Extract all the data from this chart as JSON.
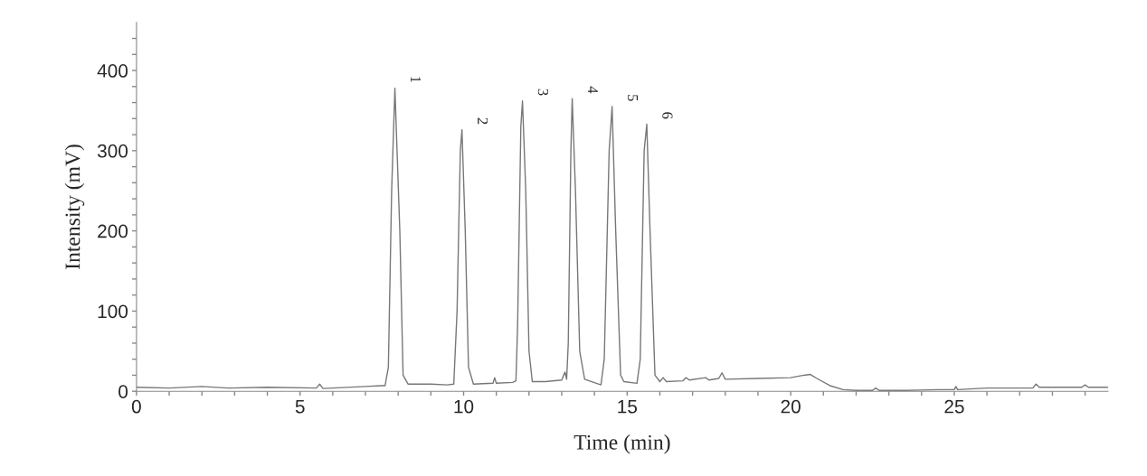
{
  "chart_data": {
    "type": "line",
    "xlabel": "Time (min)",
    "ylabel": "Intensity (mV)",
    "xlim": [
      0,
      29.7
    ],
    "ylim": [
      0,
      460
    ],
    "xticks": [
      0,
      {
        "value": 1,
        "label": null
      },
      {
        "value": 2,
        "label": null
      },
      {
        "value": 3,
        "label": null
      },
      {
        "value": 4,
        "label": null
      },
      5,
      {
        "value": 6,
        "label": null
      },
      {
        "value": 7,
        "label": null
      },
      {
        "value": 8,
        "label": null
      },
      {
        "value": 9,
        "label": null
      },
      10,
      {
        "value": 11,
        "label": null
      },
      {
        "value": 12,
        "label": null
      },
      {
        "value": 13,
        "label": null
      },
      {
        "value": 14,
        "label": null
      },
      15,
      {
        "value": 16,
        "label": null
      },
      {
        "value": 17,
        "label": null
      },
      {
        "value": 18,
        "label": null
      },
      {
        "value": 19,
        "label": null
      },
      20,
      {
        "value": 21,
        "label": null
      },
      {
        "value": 22,
        "label": null
      },
      {
        "value": 23,
        "label": null
      },
      {
        "value": 24,
        "label": null
      },
      25,
      {
        "value": 26,
        "label": null
      },
      {
        "value": 27,
        "label": null
      },
      {
        "value": 28,
        "label": null
      },
      {
        "value": 29,
        "label": null
      }
    ],
    "yticks": [
      0,
      {
        "value": 20,
        "label": null
      },
      {
        "value": 40,
        "label": null
      },
      {
        "value": 60,
        "label": null
      },
      {
        "value": 80,
        "label": null
      },
      100,
      {
        "value": 120,
        "label": null
      },
      {
        "value": 140,
        "label": null
      },
      {
        "value": 160,
        "label": null
      },
      {
        "value": 180,
        "label": null
      },
      200,
      {
        "value": 220,
        "label": null
      },
      {
        "value": 240,
        "label": null
      },
      {
        "value": 260,
        "label": null
      },
      {
        "value": 280,
        "label": null
      },
      300,
      {
        "value": 320,
        "label": null
      },
      {
        "value": 340,
        "label": null
      },
      {
        "value": 360,
        "label": null
      },
      {
        "value": 380,
        "label": null
      },
      400,
      {
        "value": 420,
        "label": null
      },
      {
        "value": 440,
        "label": null
      }
    ],
    "grid": false,
    "legend": false,
    "marker": "none",
    "line_style": "solid",
    "series": [
      {
        "color": "#777777",
        "x": [
          0,
          1,
          2,
          2.8,
          4,
          5.5,
          5.6,
          5.7,
          7,
          7.5,
          7.6,
          7.7,
          7.8,
          7.9,
          8.05,
          8.15,
          8.3,
          9,
          9.5,
          9.7,
          9.8,
          9.9,
          9.95,
          10.05,
          10.15,
          10.3,
          10.9,
          10.95,
          11.0,
          11.5,
          11.6,
          11.65,
          11.75,
          11.8,
          11.9,
          12.0,
          12.1,
          12.5,
          13.0,
          13.1,
          13.15,
          13.2,
          13.28,
          13.32,
          13.42,
          13.55,
          13.7,
          14.2,
          14.3,
          14.45,
          14.54,
          14.65,
          14.8,
          14.9,
          15.3,
          15.4,
          15.52,
          15.6,
          15.7,
          15.85,
          16,
          16.1,
          16.2,
          16.7,
          16.8,
          16.9,
          17.4,
          17.5,
          17.8,
          17.9,
          18.0,
          19,
          20,
          20.4,
          20.6,
          20.8,
          21.2,
          21.6,
          22,
          22.5,
          22.6,
          22.7,
          23.5,
          24.5,
          25,
          25.05,
          25.1,
          26,
          27,
          27.4,
          27.5,
          27.6,
          28,
          28.9,
          29,
          29.1,
          29.7
        ],
        "values": [
          5,
          4,
          6,
          4,
          5,
          4,
          9,
          3.5,
          6,
          7,
          7,
          30,
          250,
          378,
          200,
          20,
          9,
          9,
          8,
          9,
          100,
          300,
          326,
          200,
          30,
          9,
          10,
          17,
          10,
          11,
          13,
          80,
          330,
          362,
          250,
          50,
          12,
          12,
          14,
          24,
          15,
          60,
          300,
          365,
          250,
          50,
          15,
          8,
          40,
          300,
          355,
          200,
          20,
          12,
          10,
          40,
          300,
          333,
          200,
          20,
          12,
          17,
          12,
          13,
          17,
          14,
          17,
          14,
          16,
          23,
          15,
          16,
          17,
          20,
          21,
          16,
          7,
          2,
          1,
          1,
          4,
          1,
          1,
          2,
          2,
          6,
          2,
          4,
          4,
          4,
          9,
          5,
          5,
          5,
          8,
          5,
          5
        ]
      }
    ],
    "annotations": [
      {
        "text": "1",
        "x": 7.9,
        "y": 378
      },
      {
        "text": "2",
        "x": 9.95,
        "y": 326
      },
      {
        "text": "3",
        "x": 11.8,
        "y": 362
      },
      {
        "text": "4",
        "x": 13.32,
        "y": 365
      },
      {
        "text": "5",
        "x": 14.54,
        "y": 355
      },
      {
        "text": "6",
        "x": 15.6,
        "y": 333
      }
    ]
  }
}
